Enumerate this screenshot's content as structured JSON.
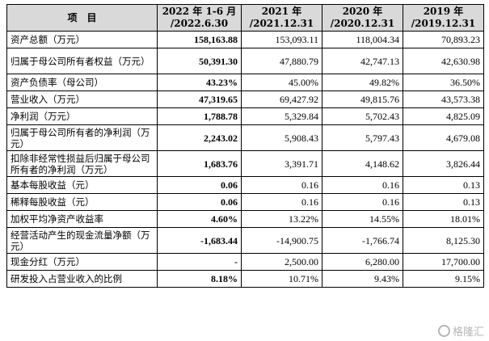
{
  "table": {
    "headers": [
      "项　目",
      "2022 年 1-6 月\n/2022.6.30",
      "2021 年\n/2021.12.31",
      "2020 年\n/2020.12.31",
      "2019 年\n/2019.12.31"
    ],
    "rows": [
      {
        "label": "资产总额（万元）",
        "values": [
          "158,163.88",
          "153,093.11",
          "118,004.34",
          "70,893.23"
        ],
        "tall": false
      },
      {
        "label": "归属于母公司所有者权益（万元）",
        "values": [
          "50,391.30",
          "47,880.79",
          "42,747.13",
          "42,630.98"
        ],
        "tall": true
      },
      {
        "label": "资产负债率（母公司）",
        "values": [
          "43.23%",
          "45.00%",
          "49.82%",
          "36.50%"
        ],
        "tall": false
      },
      {
        "label": "营业收入（万元）",
        "values": [
          "47,319.65",
          "69,427.92",
          "49,815.76",
          "43,573.38"
        ],
        "tall": false
      },
      {
        "label": "净利润（万元）",
        "values": [
          "1,788.78",
          "5,329.84",
          "5,702.43",
          "4,825.09"
        ],
        "tall": false
      },
      {
        "label": "归属于母公司所有者的净利润（万元）",
        "values": [
          "2,243.02",
          "5,908.43",
          "5,797.43",
          "4,679.08"
        ],
        "tall": true
      },
      {
        "label": "扣除非经常性损益后归属于母公司所有者的净利润（万元）",
        "values": [
          "1,683.76",
          "3,391.71",
          "4,148.62",
          "3,826.44"
        ],
        "tall": true
      },
      {
        "label": "基本每股收益（元）",
        "values": [
          "0.06",
          "0.16",
          "0.16",
          "0.13"
        ],
        "tall": false
      },
      {
        "label": "稀释每股收益（元）",
        "values": [
          "0.06",
          "0.16",
          "0.16",
          "0.13"
        ],
        "tall": false
      },
      {
        "label": "加权平均净资产收益率",
        "values": [
          "4.60%",
          "13.22%",
          "14.55%",
          "18.01%"
        ],
        "tall": false
      },
      {
        "label": "经营活动产生的现金流量净额（万元）",
        "values": [
          "-1,683.44",
          "-14,900.75",
          "-1,766.74",
          "8,125.30"
        ],
        "tall": true
      },
      {
        "label": "现金分红（万元）",
        "values": [
          "-",
          "2,500.00",
          "6,280.00",
          "17,700.00"
        ],
        "tall": false
      },
      {
        "label": "研发投入占营业收入的比例",
        "values": [
          "8.18%",
          "10.71%",
          "9.43%",
          "9.15%"
        ],
        "tall": false
      }
    ]
  },
  "watermark": {
    "text": "格隆汇",
    "icon": "gelonghui-logo-icon"
  }
}
